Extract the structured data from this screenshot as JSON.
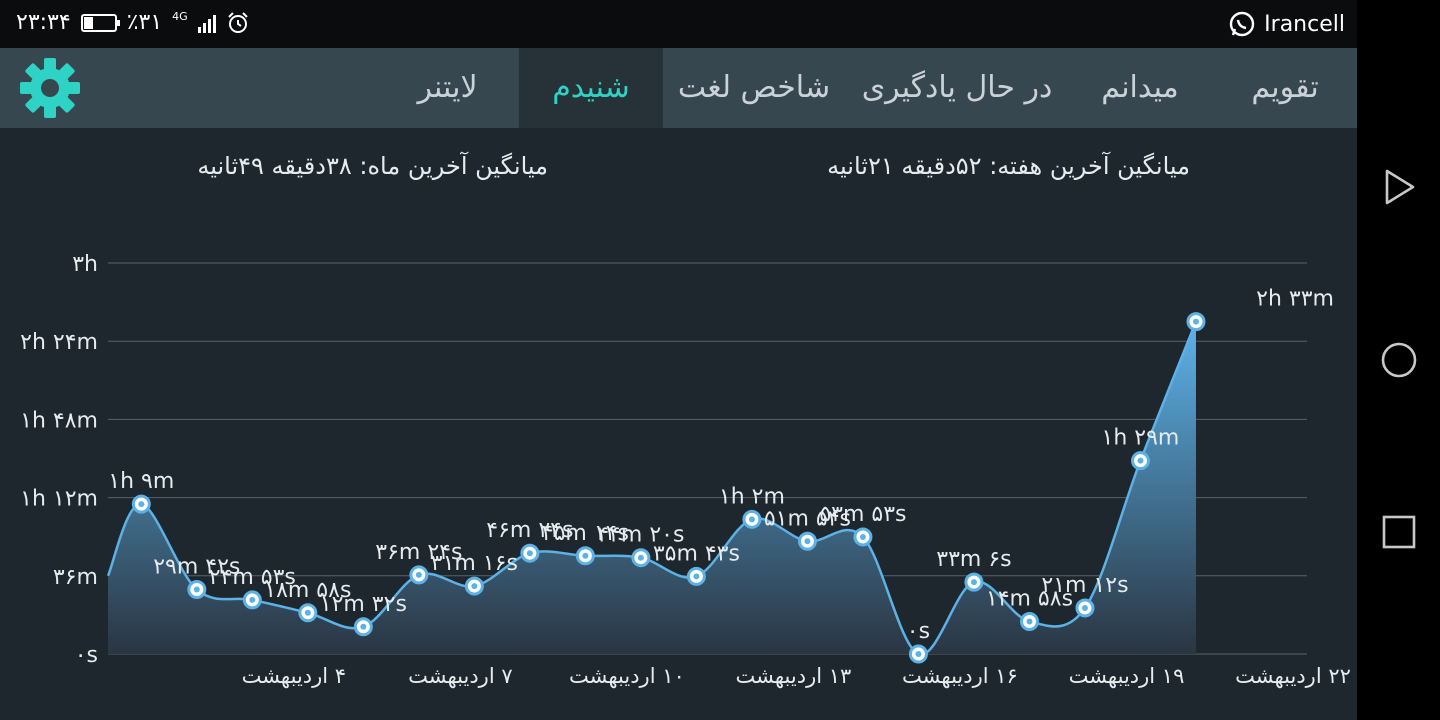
{
  "status_bar": {
    "time": "۲۳:۳۴",
    "battery": "٪۳۱",
    "battery_level": 0.31,
    "network": "4G",
    "carrier": "Irancell",
    "icons": [
      "battery-icon",
      "signal-icon",
      "alarm-icon",
      "whatsapp-icon"
    ]
  },
  "tabs": [
    {
      "label": "تقویم",
      "active": false
    },
    {
      "label": "میدانم",
      "active": false
    },
    {
      "label": "در حال یادگیری",
      "active": false
    },
    {
      "label": "شاخص لغت",
      "active": false
    },
    {
      "label": "شنیدم",
      "active": true
    },
    {
      "label": "لایتنر",
      "active": false
    }
  ],
  "settings_icon": "gear-icon",
  "accent_color": "#2fd3c6",
  "averages": {
    "week": "میانگین آخرین هفته: ۵۲دقیقه  ۲۱ثانیه",
    "month": "میانگین آخرین ماه: ۳۸دقیقه  ۴۹ثانیه"
  },
  "chart_data": {
    "type": "area",
    "y_unit": "minutes",
    "ylim": [
      0,
      180
    ],
    "y_ticks": [
      {
        "value": 0,
        "label": "۰s"
      },
      {
        "value": 36,
        "label": "۳۶m"
      },
      {
        "value": 72,
        "label": "۱h ۱۲m"
      },
      {
        "value": 108,
        "label": "۱h ۴۸m"
      },
      {
        "value": 144,
        "label": "۲h ۲۴m"
      },
      {
        "value": 180,
        "label": "۳h"
      }
    ],
    "x_ticks": [
      {
        "day": 4,
        "label": "۴ اردیبهشت"
      },
      {
        "day": 7,
        "label": "۷ اردیبهشت"
      },
      {
        "day": 10,
        "label": "۱۰ اردیبهشت"
      },
      {
        "day": 13,
        "label": "۱۳ اردیبهشت"
      },
      {
        "day": 16,
        "label": "۱۶ اردیبهشت"
      },
      {
        "day": 19,
        "label": "۱۹ اردیبهشت"
      },
      {
        "day": 22,
        "label": "۲۲ اردیبهشت"
      }
    ],
    "xlim": [
      0.4,
      22
    ],
    "points": [
      {
        "day": 1,
        "value": 69,
        "label": "۱h ۹m"
      },
      {
        "day": 2,
        "value": 29.7,
        "label": "۲۹m ۴۲s"
      },
      {
        "day": 3,
        "value": 24.9,
        "label": "۲۴m ۵۳s"
      },
      {
        "day": 4,
        "value": 18.97,
        "label": "۱۸m ۵۸s"
      },
      {
        "day": 5,
        "value": 12.53,
        "label": "۱۲m ۳۲s"
      },
      {
        "day": 6,
        "value": 36.4,
        "label": "۳۶m ۲۴s"
      },
      {
        "day": 7,
        "value": 31.27,
        "label": "۳۱m ۱۶s"
      },
      {
        "day": 8,
        "value": 46.4,
        "label": "۴۶m ۲۴s"
      },
      {
        "day": 9,
        "value": 45.23,
        "label": "۴۵m ۱۴s"
      },
      {
        "day": 10,
        "value": 44.33,
        "label": "۴۴m ۲۰s"
      },
      {
        "day": 11,
        "value": 35.72,
        "label": "۳۵m ۴۳s"
      },
      {
        "day": 12,
        "value": 62,
        "label": "۱h ۲m"
      },
      {
        "day": 13,
        "value": 51.9,
        "label": "۵۱m ۵۴s"
      },
      {
        "day": 14,
        "value": 53.88,
        "label": "۵۳m ۵۳s"
      },
      {
        "day": 15,
        "value": 0,
        "label": "۰s"
      },
      {
        "day": 16,
        "value": 33.1,
        "label": "۳۳m ۶s"
      },
      {
        "day": 17,
        "value": 14.97,
        "label": "۱۴m ۵۸s"
      },
      {
        "day": 18,
        "value": 21.2,
        "label": "۲۱m ۱۲s"
      },
      {
        "day": 19,
        "value": 89,
        "label": "۱h ۲۹m"
      },
      {
        "day": 20,
        "value": 153,
        "label": "۲h ۳۳m"
      }
    ],
    "line_color": "#5cb2e6",
    "fill_top": "#5cb3ea",
    "fill_bottom": "#2a3541",
    "grid": true
  }
}
